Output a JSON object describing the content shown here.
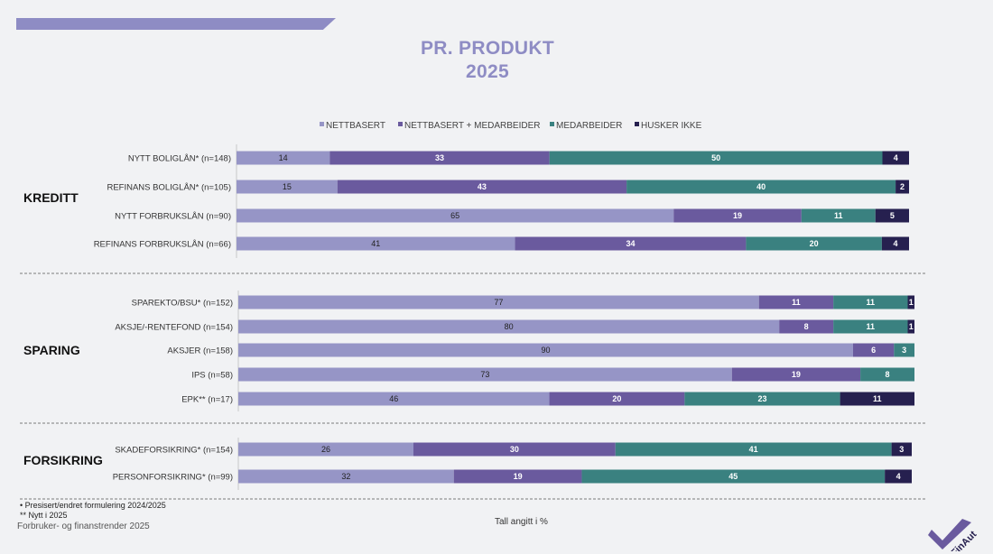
{
  "header": {
    "title": "PR. PRODUKT",
    "subtitle": "2025"
  },
  "chart_data": {
    "type": "bar",
    "orientation": "horizontal",
    "stacked": true,
    "legend_position": "top",
    "unit": "%",
    "series": [
      {
        "name": "NETTBASERT",
        "color": "#9695c6"
      },
      {
        "name": "NETTBASERT + MEDARBEIDER",
        "color": "#6a5a9e"
      },
      {
        "name": "MEDARBEIDER",
        "color": "#3a8180"
      },
      {
        "name": "HUSKER IKKE",
        "color": "#26204f"
      }
    ],
    "groups": [
      {
        "name": "KREDITT",
        "rows": [
          {
            "label": "NYTT BOLIGLÅN* (n=148)",
            "values": [
              14,
              33,
              50,
              4
            ]
          },
          {
            "label": "REFINANS BOLIGLÅN* (n=105)",
            "values": [
              15,
              43,
              40,
              2
            ]
          },
          {
            "label": "NYTT FORBRUKSLÅN (n=90)",
            "values": [
              65,
              19,
              11,
              5
            ]
          },
          {
            "label": "REFINANS FORBRUKSLÅN (n=66)",
            "values": [
              41,
              34,
              20,
              4
            ]
          }
        ]
      },
      {
        "name": "SPARING",
        "rows": [
          {
            "label": "SPAREKTO/BSU* (n=152)",
            "values": [
              77,
              11,
              11,
              1
            ]
          },
          {
            "label": "AKSJE/-RENTEFOND (n=154)",
            "values": [
              80,
              8,
              11,
              1
            ]
          },
          {
            "label": "AKSJER (n=158)",
            "values": [
              90,
              6,
              3,
              0
            ]
          },
          {
            "label": "IPS (n=58)",
            "values": [
              73,
              19,
              8,
              0
            ]
          },
          {
            "label": "EPK** (n=17)",
            "values": [
              46,
              20,
              23,
              11
            ]
          }
        ]
      },
      {
        "name": "FORSIKRING",
        "rows": [
          {
            "label": "SKADEFORSIKRING* (n=154)",
            "values": [
              26,
              30,
              41,
              3
            ]
          },
          {
            "label": "PERSONFORSIKRING* (n=99)",
            "values": [
              32,
              19,
              45,
              4
            ]
          }
        ]
      }
    ]
  },
  "footnotes": {
    "note1": "Presisert/endret formulering 2024/2025",
    "note2": "** Nytt i 2025",
    "brand": "Forbruker- og finanstrender 2025",
    "unit": "Tall angitt i %",
    "logo_text": "FinAut"
  }
}
